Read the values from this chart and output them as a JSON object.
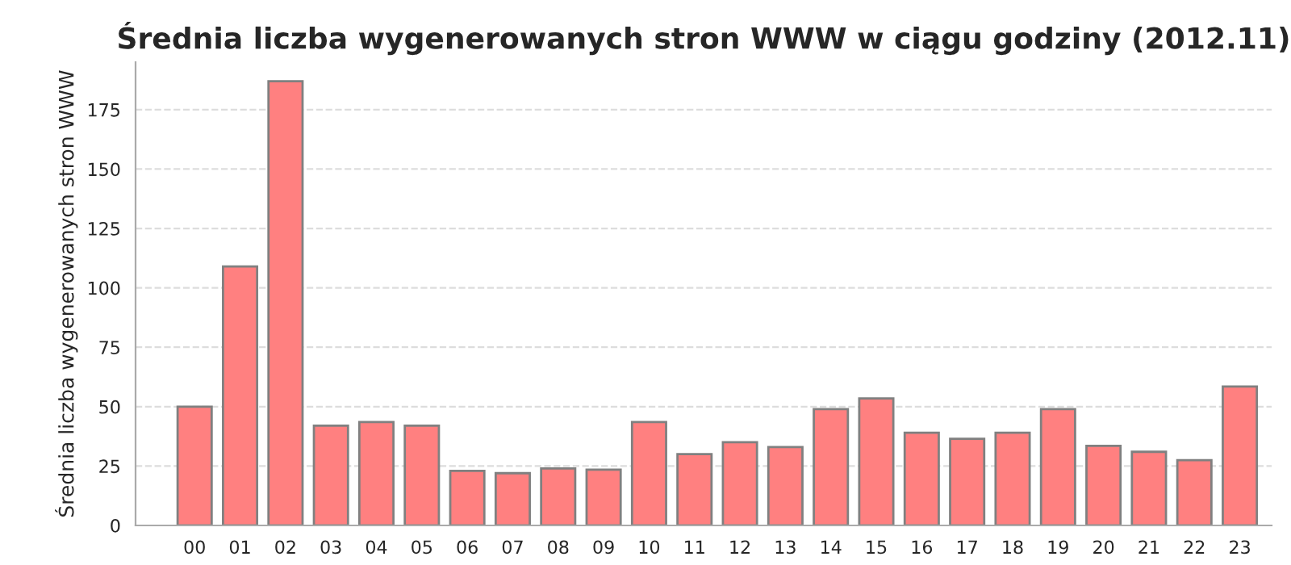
{
  "chart_data": {
    "type": "bar",
    "title": "Średnia liczba wygenerowanych stron WWW w ciągu godziny (2012.11)",
    "ylabel": "Średnia liczba wygenerowanych stron WWW",
    "categories": [
      "00",
      "01",
      "02",
      "03",
      "04",
      "05",
      "06",
      "07",
      "08",
      "09",
      "10",
      "11",
      "12",
      "13",
      "14",
      "15",
      "16",
      "17",
      "18",
      "19",
      "20",
      "21",
      "22",
      "23"
    ],
    "values": [
      50,
      109,
      187,
      42,
      43.5,
      42,
      23,
      22,
      24,
      23.5,
      43.5,
      30,
      35,
      33,
      49,
      53.5,
      39,
      36.5,
      39,
      49,
      33.5,
      31,
      27.5,
      58.5
    ],
    "color": "#ff8080",
    "ylim": [
      0,
      195
    ],
    "yticks": [
      0,
      25,
      50,
      75,
      100,
      125,
      150,
      175
    ],
    "grid": "y",
    "legend": false
  }
}
